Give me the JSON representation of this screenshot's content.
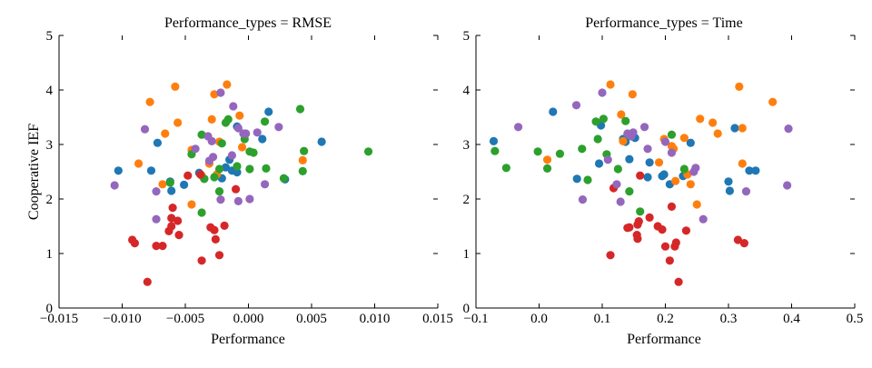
{
  "chart_data": [
    {
      "type": "scatter",
      "title": "Performance_types = RMSE",
      "xlabel": "Performance",
      "ylabel": "Cooperative IEF",
      "xlim": [
        -0.015,
        0.015
      ],
      "ylim": [
        0,
        5
      ],
      "xticks": [
        -0.015,
        -0.01,
        -0.005,
        0.0,
        0.005,
        0.01,
        0.015
      ],
      "xtick_labels": [
        "−0.015",
        "−0.010",
        "−0.005",
        "0.000",
        "0.005",
        "0.010",
        "0.015"
      ],
      "yticks": [
        0,
        1,
        2,
        3,
        4,
        5
      ],
      "ytick_labels": [
        "0",
        "1",
        "2",
        "3",
        "4",
        "5"
      ],
      "grid": false,
      "series": [
        {
          "color": "#1f77b4",
          "points": [
            [
              -0.0103,
              2.52
            ],
            [
              -0.0077,
              2.52
            ],
            [
              -0.0072,
              3.03
            ],
            [
              -0.0062,
              2.32
            ],
            [
              -0.0061,
              2.15
            ],
            [
              -0.0051,
              2.26
            ],
            [
              -0.0039,
              2.48
            ],
            [
              -0.0035,
              2.37
            ],
            [
              -0.0021,
              2.38
            ],
            [
              -0.0018,
              2.58
            ],
            [
              -0.0015,
              2.72
            ],
            [
              -0.0013,
              2.52
            ],
            [
              -0.0009,
              2.49
            ],
            [
              -0.0009,
              3.33
            ],
            [
              0.0011,
              3.1
            ],
            [
              0.0016,
              3.6
            ],
            [
              0.0029,
              2.36
            ],
            [
              0.0058,
              3.05
            ]
          ]
        },
        {
          "color": "#ff7f0e",
          "points": [
            [
              -0.0087,
              2.65
            ],
            [
              -0.0078,
              3.78
            ],
            [
              -0.0066,
              3.2
            ],
            [
              -0.0068,
              2.27
            ],
            [
              -0.0058,
              4.06
            ],
            [
              -0.0056,
              3.4
            ],
            [
              -0.0045,
              1.9
            ],
            [
              -0.0045,
              2.9
            ],
            [
              -0.0037,
              2.43
            ],
            [
              -0.0031,
              2.65
            ],
            [
              -0.0029,
              3.46
            ],
            [
              -0.0027,
              3.92
            ],
            [
              -0.0023,
              3.05
            ],
            [
              -0.0017,
              4.1
            ],
            [
              -0.0007,
              3.53
            ],
            [
              -0.0005,
              2.95
            ],
            [
              0.0043,
              2.71
            ],
            [
              -0.0025,
              2.45
            ]
          ]
        },
        {
          "color": "#2ca02c",
          "points": [
            [
              -0.0062,
              2.3
            ],
            [
              -0.0045,
              2.82
            ],
            [
              -0.0037,
              3.18
            ],
            [
              -0.0037,
              1.75
            ],
            [
              -0.0035,
              2.37
            ],
            [
              -0.0027,
              2.4
            ],
            [
              -0.0023,
              2.55
            ],
            [
              -0.0023,
              2.14
            ],
            [
              -0.0021,
              3.02
            ],
            [
              -0.0018,
              3.4
            ],
            [
              -0.0016,
              3.46
            ],
            [
              -0.0009,
              2.6
            ],
            [
              -0.0003,
              3.1
            ],
            [
              0.0001,
              2.55
            ],
            [
              0.0001,
              2.87
            ],
            [
              0.0004,
              2.85
            ],
            [
              0.0013,
              3.42
            ],
            [
              0.0014,
              2.56
            ],
            [
              0.0028,
              2.38
            ],
            [
              0.0041,
              3.65
            ],
            [
              0.0043,
              2.51
            ],
            [
              0.0044,
              2.88
            ],
            [
              0.0095,
              2.87
            ]
          ]
        },
        {
          "color": "#d62728",
          "points": [
            [
              -0.0092,
              1.25
            ],
            [
              -0.009,
              1.19
            ],
            [
              -0.008,
              0.48
            ],
            [
              -0.0073,
              1.14
            ],
            [
              -0.0068,
              1.14
            ],
            [
              -0.0063,
              1.41
            ],
            [
              -0.0061,
              1.65
            ],
            [
              -0.0061,
              1.5
            ],
            [
              -0.006,
              1.84
            ],
            [
              -0.0056,
              1.6
            ],
            [
              -0.0055,
              1.34
            ],
            [
              -0.0048,
              2.43
            ],
            [
              -0.0037,
              0.87
            ],
            [
              -0.003,
              1.48
            ],
            [
              -0.0027,
              1.43
            ],
            [
              -0.0026,
              1.26
            ],
            [
              -0.0023,
              0.97
            ],
            [
              -0.0019,
              1.51
            ],
            [
              -0.001,
              2.18
            ],
            [
              -0.0038,
              2.45
            ]
          ]
        },
        {
          "color": "#9467bd",
          "points": [
            [
              -0.0106,
              2.25
            ],
            [
              -0.0082,
              3.28
            ],
            [
              -0.0073,
              2.14
            ],
            [
              -0.0073,
              1.63
            ],
            [
              -0.0042,
              2.92
            ],
            [
              -0.0032,
              3.15
            ],
            [
              -0.0031,
              2.7
            ],
            [
              -0.0029,
              3.06
            ],
            [
              -0.0028,
              2.77
            ],
            [
              -0.0022,
              1.99
            ],
            [
              -0.0022,
              3.95
            ],
            [
              -0.0013,
              2.8
            ],
            [
              -0.0012,
              3.7
            ],
            [
              -0.0008,
              3.3
            ],
            [
              -0.0004,
              3.2
            ],
            [
              -0.0002,
              3.2
            ],
            [
              0.0001,
              2.0
            ],
            [
              0.0007,
              3.22
            ],
            [
              0.0013,
              2.27
            ],
            [
              0.0024,
              3.32
            ],
            [
              -0.0008,
              1.96
            ]
          ]
        }
      ]
    },
    {
      "type": "scatter",
      "title": "Performance_types = Time",
      "xlabel": "Performance",
      "ylabel": "",
      "xlim": [
        -0.1,
        0.5
      ],
      "ylim": [
        0,
        5
      ],
      "xticks": [
        -0.1,
        0.0,
        0.1,
        0.2,
        0.3,
        0.4,
        0.5
      ],
      "xtick_labels": [
        "−0.1",
        "0.0",
        "0.1",
        "0.2",
        "0.3",
        "0.4",
        "0.5"
      ],
      "yticks": [
        0,
        1,
        2,
        3,
        4,
        5
      ],
      "ytick_labels": [
        "0",
        "1",
        "2",
        "3",
        "4",
        "5"
      ],
      "grid": false,
      "series": [
        {
          "color": "#1f77b4",
          "points": [
            [
              -0.072,
              3.06
            ],
            [
              0.022,
              3.6
            ],
            [
              0.06,
              2.37
            ],
            [
              0.095,
              2.65
            ],
            [
              0.098,
              3.35
            ],
            [
              0.133,
              3.1
            ],
            [
              0.137,
              3.05
            ],
            [
              0.143,
              2.73
            ],
            [
              0.152,
              3.12
            ],
            [
              0.172,
              2.4
            ],
            [
              0.175,
              2.67
            ],
            [
              0.195,
              2.42
            ],
            [
              0.198,
              2.45
            ],
            [
              0.207,
              2.27
            ],
            [
              0.228,
              2.42
            ],
            [
              0.24,
              3.03
            ],
            [
              0.3,
              2.32
            ],
            [
              0.302,
              2.15
            ],
            [
              0.31,
              3.3
            ],
            [
              0.333,
              2.52
            ],
            [
              0.343,
              2.52
            ]
          ]
        },
        {
          "color": "#ff7f0e",
          "points": [
            [
              0.013,
              2.72
            ],
            [
              0.113,
              4.1
            ],
            [
              0.13,
              3.55
            ],
            [
              0.133,
              3.06
            ],
            [
              0.148,
              3.92
            ],
            [
              0.19,
              2.67
            ],
            [
              0.198,
              3.1
            ],
            [
              0.21,
              2.97
            ],
            [
              0.213,
              2.92
            ],
            [
              0.216,
              2.33
            ],
            [
              0.23,
              3.12
            ],
            [
              0.235,
              2.45
            ],
            [
              0.24,
              2.27
            ],
            [
              0.25,
              1.9
            ],
            [
              0.255,
              3.47
            ],
            [
              0.275,
              3.4
            ],
            [
              0.283,
              3.2
            ],
            [
              0.317,
              4.06
            ],
            [
              0.322,
              3.3
            ],
            [
              0.322,
              2.65
            ],
            [
              0.37,
              3.78
            ]
          ]
        },
        {
          "color": "#2ca02c",
          "points": [
            [
              -0.07,
              2.88
            ],
            [
              -0.052,
              2.57
            ],
            [
              -0.002,
              2.87
            ],
            [
              0.013,
              2.56
            ],
            [
              0.033,
              2.83
            ],
            [
              0.068,
              2.92
            ],
            [
              0.077,
              2.35
            ],
            [
              0.09,
              3.42
            ],
            [
              0.093,
              3.1
            ],
            [
              0.102,
              3.47
            ],
            [
              0.107,
              2.82
            ],
            [
              0.125,
              2.55
            ],
            [
              0.137,
              3.43
            ],
            [
              0.143,
              2.14
            ],
            [
              0.16,
              1.77
            ],
            [
              0.21,
              3.18
            ],
            [
              0.23,
              2.55
            ]
          ]
        },
        {
          "color": "#d62728",
          "points": [
            [
              0.113,
              0.97
            ],
            [
              0.118,
              2.2
            ],
            [
              0.14,
              1.47
            ],
            [
              0.143,
              1.48
            ],
            [
              0.155,
              1.34
            ],
            [
              0.156,
              1.27
            ],
            [
              0.156,
              1.53
            ],
            [
              0.158,
              1.59
            ],
            [
              0.16,
              2.43
            ],
            [
              0.175,
              1.66
            ],
            [
              0.188,
              1.5
            ],
            [
              0.195,
              1.44
            ],
            [
              0.2,
              1.13
            ],
            [
              0.207,
              0.87
            ],
            [
              0.21,
              1.86
            ],
            [
              0.215,
              1.13
            ],
            [
              0.217,
              1.2
            ],
            [
              0.221,
              0.48
            ],
            [
              0.233,
              1.42
            ],
            [
              0.315,
              1.25
            ],
            [
              0.325,
              1.19
            ]
          ]
        },
        {
          "color": "#9467bd",
          "points": [
            [
              -0.033,
              3.32
            ],
            [
              0.059,
              3.72
            ],
            [
              0.069,
              1.99
            ],
            [
              0.1,
              3.95
            ],
            [
              0.109,
              2.72
            ],
            [
              0.123,
              2.27
            ],
            [
              0.129,
              1.95
            ],
            [
              0.14,
              3.2
            ],
            [
              0.146,
              3.15
            ],
            [
              0.149,
              3.22
            ],
            [
              0.167,
              3.32
            ],
            [
              0.172,
              2.92
            ],
            [
              0.2,
              3.05
            ],
            [
              0.21,
              2.85
            ],
            [
              0.245,
              2.5
            ],
            [
              0.248,
              2.57
            ],
            [
              0.26,
              1.63
            ],
            [
              0.328,
              2.14
            ],
            [
              0.393,
              2.25
            ],
            [
              0.395,
              3.29
            ]
          ]
        }
      ]
    }
  ]
}
